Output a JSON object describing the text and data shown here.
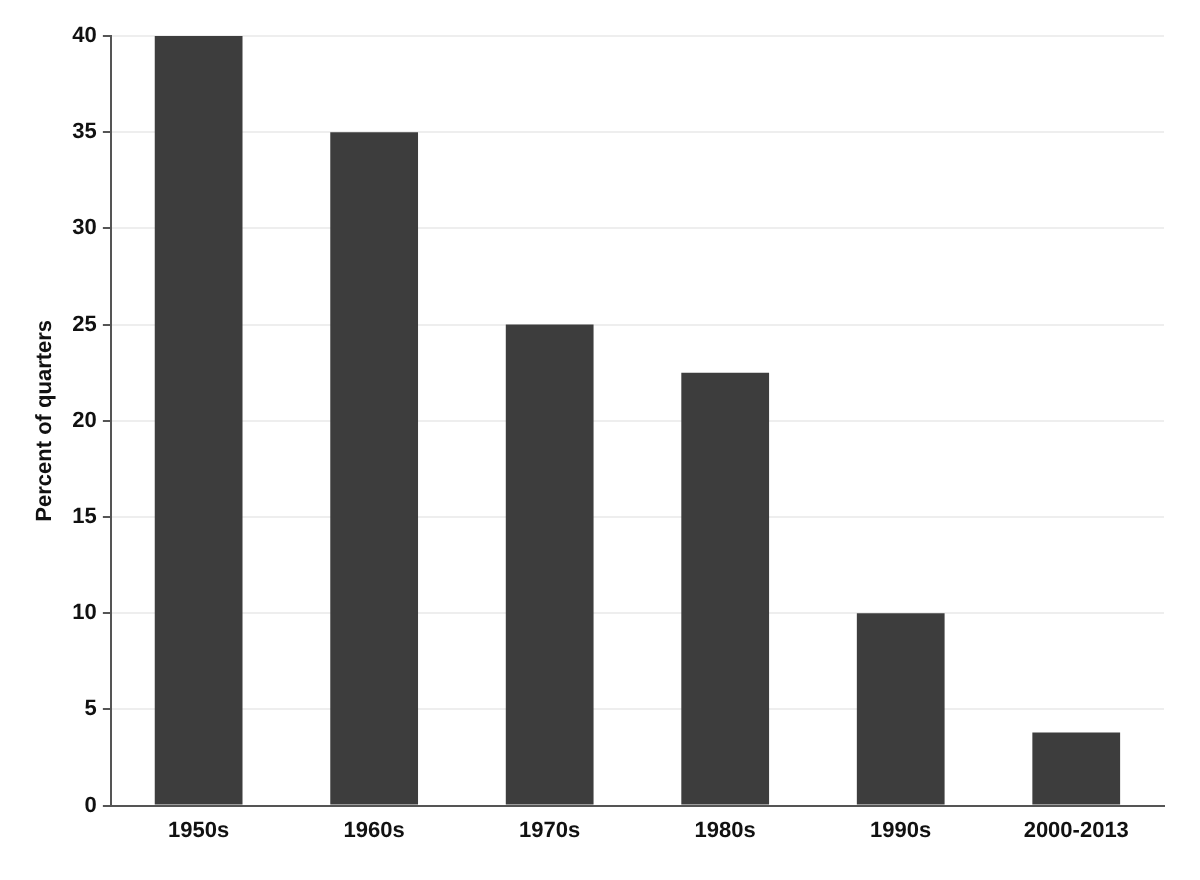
{
  "chart_data": {
    "type": "bar",
    "ylabel": "Percent of quarters",
    "categories": [
      "1950s",
      "1960s",
      "1970s",
      "1980s",
      "1990s",
      "2000-2013"
    ],
    "values": [
      40,
      35,
      25,
      22.5,
      10,
      3.8
    ],
    "color": "#3d3d3d",
    "ylim": [
      0,
      40
    ],
    "yticks": [
      0,
      5,
      10,
      15,
      20,
      25,
      30,
      35,
      40
    ],
    "grid": "y",
    "legend": false
  }
}
